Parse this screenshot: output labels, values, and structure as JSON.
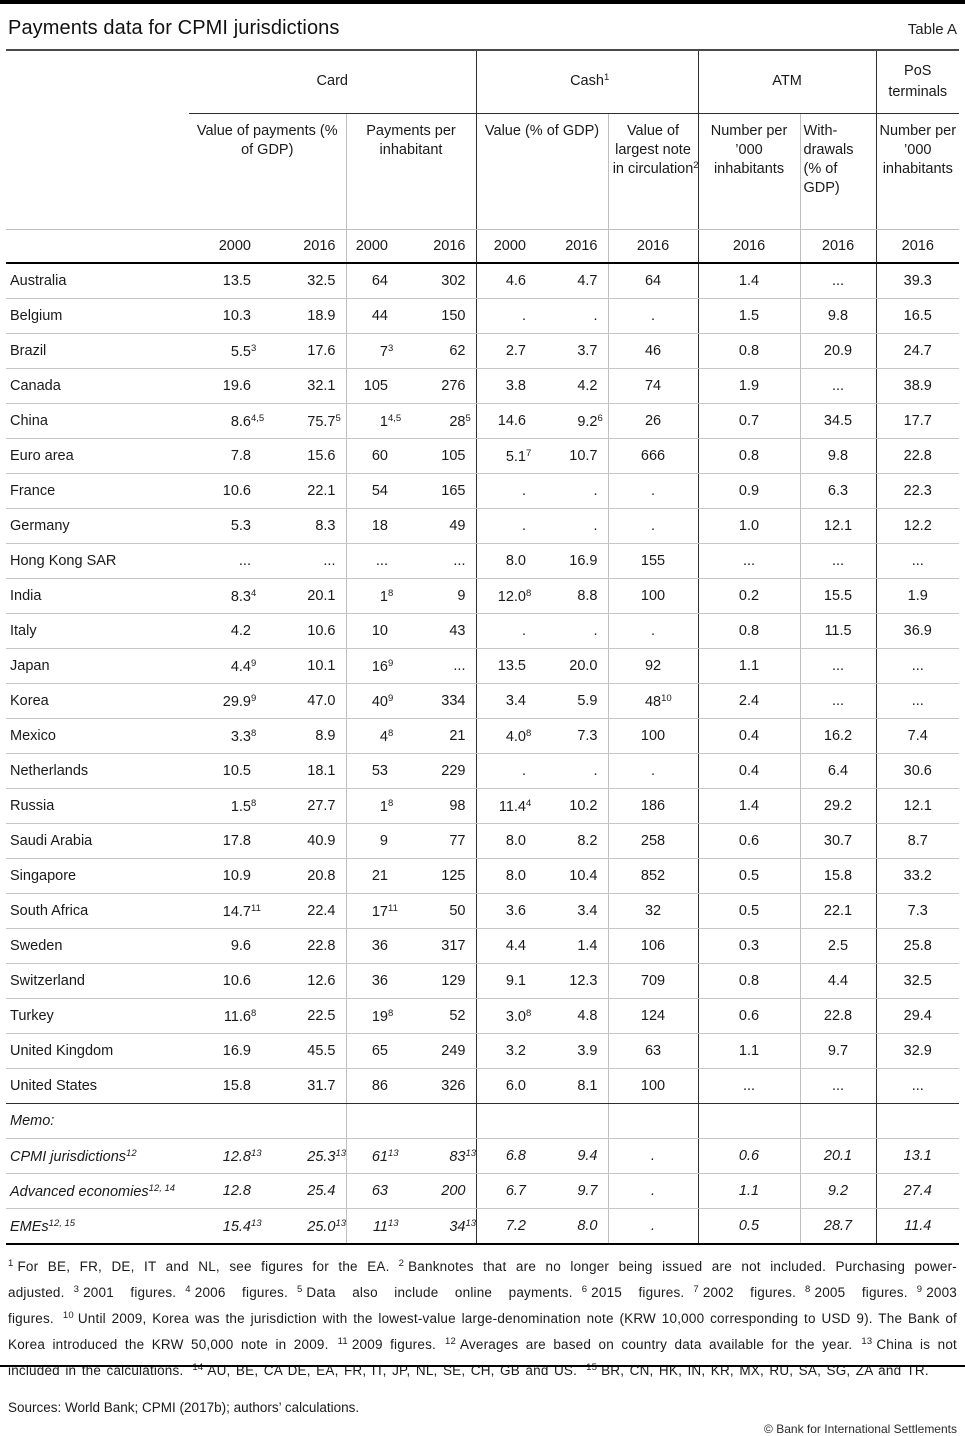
{
  "page": {
    "title": "Payments data for CPMI jurisdictions",
    "table_tag": "Table A",
    "sources": "Sources: World Bank; CPMI (2017b); authors’ calculations.",
    "copyright": "© Bank for International Settlements"
  },
  "table": {
    "groups": [
      {
        "label": "Card",
        "span": 4
      },
      {
        "label": "Cash^1",
        "span": 3
      },
      {
        "label": "ATM",
        "span": 2
      },
      {
        "label": "PoS terminals",
        "span": 1
      }
    ],
    "subheaders": [
      {
        "label": "Value of payments (% of GDP)",
        "span": 2
      },
      {
        "label": "Payments per inhabitant",
        "span": 2
      },
      {
        "label": "Value (% of GDP)",
        "span": 2
      },
      {
        "label": "Value of largest note in circulation^2",
        "span": 1
      },
      {
        "label": "Number per ’000 inhabitants",
        "span": 1
      },
      {
        "label": "With-drawals (% of GDP)",
        "span": 1
      },
      {
        "label": "Number per ’000 inhabitants",
        "span": 1
      }
    ],
    "years": [
      "2000",
      "2016",
      "2000",
      "2016",
      "2000",
      "2016",
      "2016",
      "2016",
      "2016",
      "2016"
    ],
    "rows": [
      {
        "name": "Australia",
        "cells": [
          "13.5",
          "32.5",
          "64",
          "302",
          "4.6",
          "4.7",
          "64",
          "1.4",
          "...",
          "39.3"
        ]
      },
      {
        "name": "Belgium",
        "cells": [
          "10.3",
          "18.9",
          "44",
          "150",
          ".",
          ".",
          ".",
          "1.5",
          "9.8",
          "16.5"
        ]
      },
      {
        "name": "Brazil",
        "cells": [
          "5.5^3",
          "17.6",
          "7^3",
          "62",
          "2.7",
          "3.7",
          "46",
          "0.8",
          "20.9",
          "24.7"
        ]
      },
      {
        "name": "Canada",
        "cells": [
          "19.6",
          "32.1",
          "105",
          "276",
          "3.8",
          "4.2",
          "74",
          "1.9",
          "...",
          "38.9"
        ]
      },
      {
        "name": "China",
        "cells": [
          "8.6^4,5",
          "75.7^5",
          "1^4,5",
          "28^5",
          "14.6",
          "9.2^6",
          "26",
          "0.7",
          "34.5",
          "17.7"
        ]
      },
      {
        "name": "Euro area",
        "cells": [
          "7.8",
          "15.6",
          "60",
          "105",
          "5.1^7",
          "10.7",
          "666",
          "0.8",
          "9.8",
          "22.8"
        ]
      },
      {
        "name": "France",
        "cells": [
          "10.6",
          "22.1",
          "54",
          "165",
          ".",
          ".",
          ".",
          "0.9",
          "6.3",
          "22.3"
        ]
      },
      {
        "name": "Germany",
        "cells": [
          "5.3",
          "8.3",
          "18",
          "49",
          ".",
          ".",
          ".",
          "1.0",
          "12.1",
          "12.2"
        ]
      },
      {
        "name": "Hong Kong SAR",
        "cells": [
          "...",
          "...",
          "...",
          "...",
          "8.0",
          "16.9",
          "155",
          "...",
          "...",
          "..."
        ]
      },
      {
        "name": "India",
        "cells": [
          "8.3^4",
          "20.1",
          "1^8",
          "9",
          "12.0^8",
          "8.8",
          "100",
          "0.2",
          "15.5",
          "1.9"
        ]
      },
      {
        "name": "Italy",
        "cells": [
          "4.2",
          "10.6",
          "10",
          "43",
          ".",
          ".",
          ".",
          "0.8",
          "11.5",
          "36.9"
        ]
      },
      {
        "name": "Japan",
        "cells": [
          "4.4^9",
          "10.1",
          "16^9",
          "...",
          "13.5",
          "20.0",
          "92",
          "1.1",
          "...",
          "..."
        ]
      },
      {
        "name": "Korea",
        "cells": [
          "29.9^9",
          "47.0",
          "40^9",
          "334",
          "3.4",
          "5.9",
          "48^10",
          "2.4",
          "...",
          "..."
        ]
      },
      {
        "name": "Mexico",
        "cells": [
          "3.3^8",
          "8.9",
          "4^8",
          "21",
          "4.0^8",
          "7.3",
          "100",
          "0.4",
          "16.2",
          "7.4"
        ]
      },
      {
        "name": "Netherlands",
        "cells": [
          "10.5",
          "18.1",
          "53",
          "229",
          ".",
          ".",
          ".",
          "0.4",
          "6.4",
          "30.6"
        ]
      },
      {
        "name": "Russia",
        "cells": [
          "1.5^8",
          "27.7",
          "1^8",
          "98",
          "11.4^4",
          "10.2",
          "186",
          "1.4",
          "29.2",
          "12.1"
        ]
      },
      {
        "name": "Saudi Arabia",
        "cells": [
          "17.8",
          "40.9",
          "9",
          "77",
          "8.0",
          "8.2",
          "258",
          "0.6",
          "30.7",
          "8.7"
        ]
      },
      {
        "name": "Singapore",
        "cells": [
          "10.9",
          "20.8",
          "21",
          "125",
          "8.0",
          "10.4",
          "852",
          "0.5",
          "15.8",
          "33.2"
        ]
      },
      {
        "name": "South Africa",
        "cells": [
          "14.7^11",
          "22.4",
          "17^11",
          "50",
          "3.6",
          "3.4",
          "32",
          "0.5",
          "22.1",
          "7.3"
        ]
      },
      {
        "name": "Sweden",
        "cells": [
          "9.6",
          "22.8",
          "36",
          "317",
          "4.4",
          "1.4",
          "106",
          "0.3",
          "2.5",
          "25.8"
        ]
      },
      {
        "name": "Switzerland",
        "cells": [
          "10.6",
          "12.6",
          "36",
          "129",
          "9.1",
          "12.3",
          "709",
          "0.8",
          "4.4",
          "32.5"
        ]
      },
      {
        "name": "Turkey",
        "cells": [
          "11.6^8",
          "22.5",
          "19^8",
          "52",
          "3.0^8",
          "4.8",
          "124",
          "0.6",
          "22.8",
          "29.4"
        ]
      },
      {
        "name": "United Kingdom",
        "cells": [
          "16.9",
          "45.5",
          "65",
          "249",
          "3.2",
          "3.9",
          "63",
          "1.1",
          "9.7",
          "32.9"
        ]
      },
      {
        "name": "United States",
        "cells": [
          "15.8",
          "31.7",
          "86",
          "326",
          "6.0",
          "8.1",
          "100",
          "...",
          "...",
          "..."
        ]
      }
    ],
    "memo_label": "Memo:",
    "memo_rows": [
      {
        "name": "CPMI jurisdictions^12",
        "cells": [
          "12.8^13",
          "25.3^13",
          "61^13",
          "83^13",
          "6.8",
          "9.4",
          ".",
          "0.6",
          "20.1",
          "13.1"
        ]
      },
      {
        "name": "Advanced economies^12, 14",
        "cells": [
          "12.8",
          "25.4",
          "63",
          "200",
          "6.7",
          "9.7",
          ".",
          "1.1",
          "9.2",
          "27.4"
        ]
      },
      {
        "name": "EMEs^12, 15",
        "cells": [
          "15.4^13",
          "25.0^13",
          "11^13",
          "34^13",
          "7.2",
          "8.0",
          ".",
          "0.5",
          "28.7",
          "11.4"
        ]
      }
    ]
  },
  "footnotes": [
    {
      "sup": "1",
      "text": "For BE, FR, DE, IT and NL, see figures for the EA."
    },
    {
      "sup": "2",
      "text": "Banknotes that are no longer being issued are not included. Purchasing power-adjusted."
    },
    {
      "sup": "3",
      "text": "2001 figures."
    },
    {
      "sup": "4",
      "text": "2006 figures."
    },
    {
      "sup": "5",
      "text": "Data also include online payments."
    },
    {
      "sup": "6",
      "text": "2015 figures."
    },
    {
      "sup": "7",
      "text": "2002 figures."
    },
    {
      "sup": "8",
      "text": "2005 figures."
    },
    {
      "sup": "9",
      "text": "2003 figures."
    },
    {
      "sup": "10",
      "text": "Until 2009, Korea was the jurisdiction with the lowest-value large-denomination note (KRW 10,000 corresponding to USD 9). The Bank of Korea introduced the KRW 50,000 note in 2009."
    },
    {
      "sup": "11",
      "text": "2009 figures."
    },
    {
      "sup": "12",
      "text": "Averages are based on country data available for the year."
    },
    {
      "sup": "13",
      "text": "China is not included in the calculations."
    },
    {
      "sup": "14",
      "text": "AU, BE, CA DE, EA, FR, IT, JP, NL, SE, CH, GB and US."
    },
    {
      "sup": "15",
      "text": "BR, CN, HK, IN, KR, MX, RU, SA, SG, ZA and TR."
    }
  ]
}
